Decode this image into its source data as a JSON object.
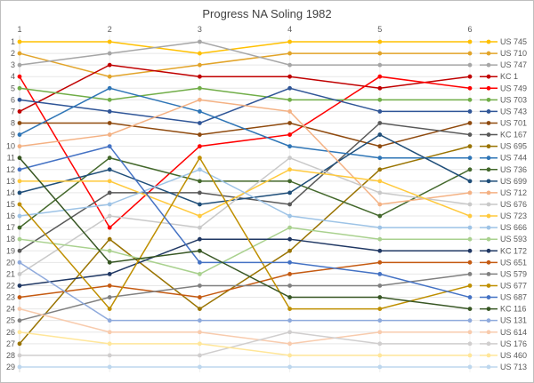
{
  "title": "Progress NA Soling 1982",
  "chart_data": {
    "type": "line",
    "subtype": "bump-rank-chart",
    "title": "Progress NA Soling 1982",
    "x_ticks_top": [
      "1",
      "2",
      "3",
      "4",
      "5",
      "6"
    ],
    "y_ticks_left": [
      "1",
      "2",
      "3",
      "4",
      "5",
      "6",
      "7",
      "8",
      "9",
      "10",
      "11",
      "12",
      "13",
      "14",
      "15",
      "16",
      "17",
      "18",
      "19",
      "20",
      "21",
      "22",
      "23",
      "24",
      "25",
      "26",
      "27",
      "28",
      "29"
    ],
    "y_axis": {
      "min": 1,
      "max": 29,
      "direction": "rank-1-at-top"
    },
    "legend_position": "right",
    "grid": true,
    "series": [
      {
        "name": "US 745",
        "color": "#FFC000",
        "ranks": [
          1,
          1,
          2,
          1,
          1,
          1
        ]
      },
      {
        "name": "US 710",
        "color": "#E2A429",
        "ranks": [
          2,
          4,
          3,
          2,
          2,
          2
        ]
      },
      {
        "name": "US 747",
        "color": "#A6A6A6",
        "ranks": [
          3,
          2,
          1,
          3,
          3,
          3
        ]
      },
      {
        "name": "KC 1",
        "color": "#C00000",
        "ranks": [
          7,
          3,
          4,
          4,
          5,
          4
        ]
      },
      {
        "name": "US 749",
        "color": "#FF0000",
        "ranks": [
          4,
          17,
          10,
          9,
          4,
          5
        ]
      },
      {
        "name": "US 703",
        "color": "#70AD47",
        "ranks": [
          5,
          6,
          5,
          6,
          6,
          6
        ]
      },
      {
        "name": "US 743",
        "color": "#2F5597",
        "ranks": [
          6,
          7,
          8,
          5,
          7,
          7
        ]
      },
      {
        "name": "US 701",
        "color": "#8F4A0E",
        "ranks": [
          8,
          8,
          9,
          8,
          10,
          8
        ]
      },
      {
        "name": "KC 167",
        "color": "#595959",
        "ranks": [
          19,
          14,
          14,
          15,
          8,
          9
        ]
      },
      {
        "name": "US 695",
        "color": "#997300",
        "ranks": [
          27,
          18,
          24,
          19,
          12,
          10
        ]
      },
      {
        "name": "US 744",
        "color": "#2E75B6",
        "ranks": [
          9,
          5,
          7,
          10,
          11,
          11
        ]
      },
      {
        "name": "US 736",
        "color": "#43682B",
        "ranks": [
          17,
          11,
          13,
          13,
          16,
          12
        ]
      },
      {
        "name": "US 699",
        "color": "#1F4E79",
        "ranks": [
          14,
          12,
          15,
          14,
          9,
          13
        ]
      },
      {
        "name": "US 712",
        "color": "#F4B183",
        "ranks": [
          10,
          9,
          6,
          7,
          15,
          14
        ]
      },
      {
        "name": "US 676",
        "color": "#C9C9C9",
        "ranks": [
          21,
          16,
          17,
          11,
          14,
          15
        ]
      },
      {
        "name": "US 723",
        "color": "#FFC93C",
        "ranks": [
          13,
          13,
          16,
          12,
          13,
          16
        ]
      },
      {
        "name": "US 666",
        "color": "#9DC3E6",
        "ranks": [
          16,
          15,
          12,
          16,
          17,
          17
        ]
      },
      {
        "name": "US 593",
        "color": "#A9D18E",
        "ranks": [
          18,
          19,
          21,
          17,
          18,
          18
        ]
      },
      {
        "name": "KC 172",
        "color": "#203864",
        "ranks": [
          22,
          21,
          18,
          18,
          19,
          19
        ]
      },
      {
        "name": "US 651",
        "color": "#C55A11",
        "ranks": [
          23,
          22,
          23,
          21,
          20,
          20
        ]
      },
      {
        "name": "US 579",
        "color": "#808080",
        "ranks": [
          25,
          23,
          22,
          22,
          22,
          21
        ]
      },
      {
        "name": "US 677",
        "color": "#BF8F00",
        "ranks": [
          15,
          24,
          11,
          24,
          24,
          22
        ]
      },
      {
        "name": "US 687",
        "color": "#4472C4",
        "ranks": [
          12,
          10,
          20,
          20,
          21,
          23
        ]
      },
      {
        "name": "KC 116",
        "color": "#375623",
        "ranks": [
          11,
          20,
          19,
          23,
          23,
          24
        ]
      },
      {
        "name": "US 131",
        "color": "#8FAADC",
        "ranks": [
          20,
          25,
          25,
          25,
          25,
          25
        ]
      },
      {
        "name": "US 614",
        "color": "#F8CBAD",
        "ranks": [
          24,
          26,
          26,
          27,
          26,
          26
        ]
      },
      {
        "name": "US 176",
        "color": "#D0CECE",
        "ranks": [
          28,
          28,
          28,
          26,
          27,
          27
        ]
      },
      {
        "name": "US 460",
        "color": "#FFE699",
        "ranks": [
          26,
          27,
          27,
          28,
          28,
          28
        ]
      },
      {
        "name": "US 713",
        "color": "#BDD7EE",
        "ranks": [
          29,
          29,
          29,
          29,
          29,
          29
        ]
      }
    ]
  },
  "layout_colors": {
    "grid": "#E7E7E7",
    "axis": "#D9D9D9",
    "tick_text": "#595959",
    "title_text": "#404040"
  }
}
